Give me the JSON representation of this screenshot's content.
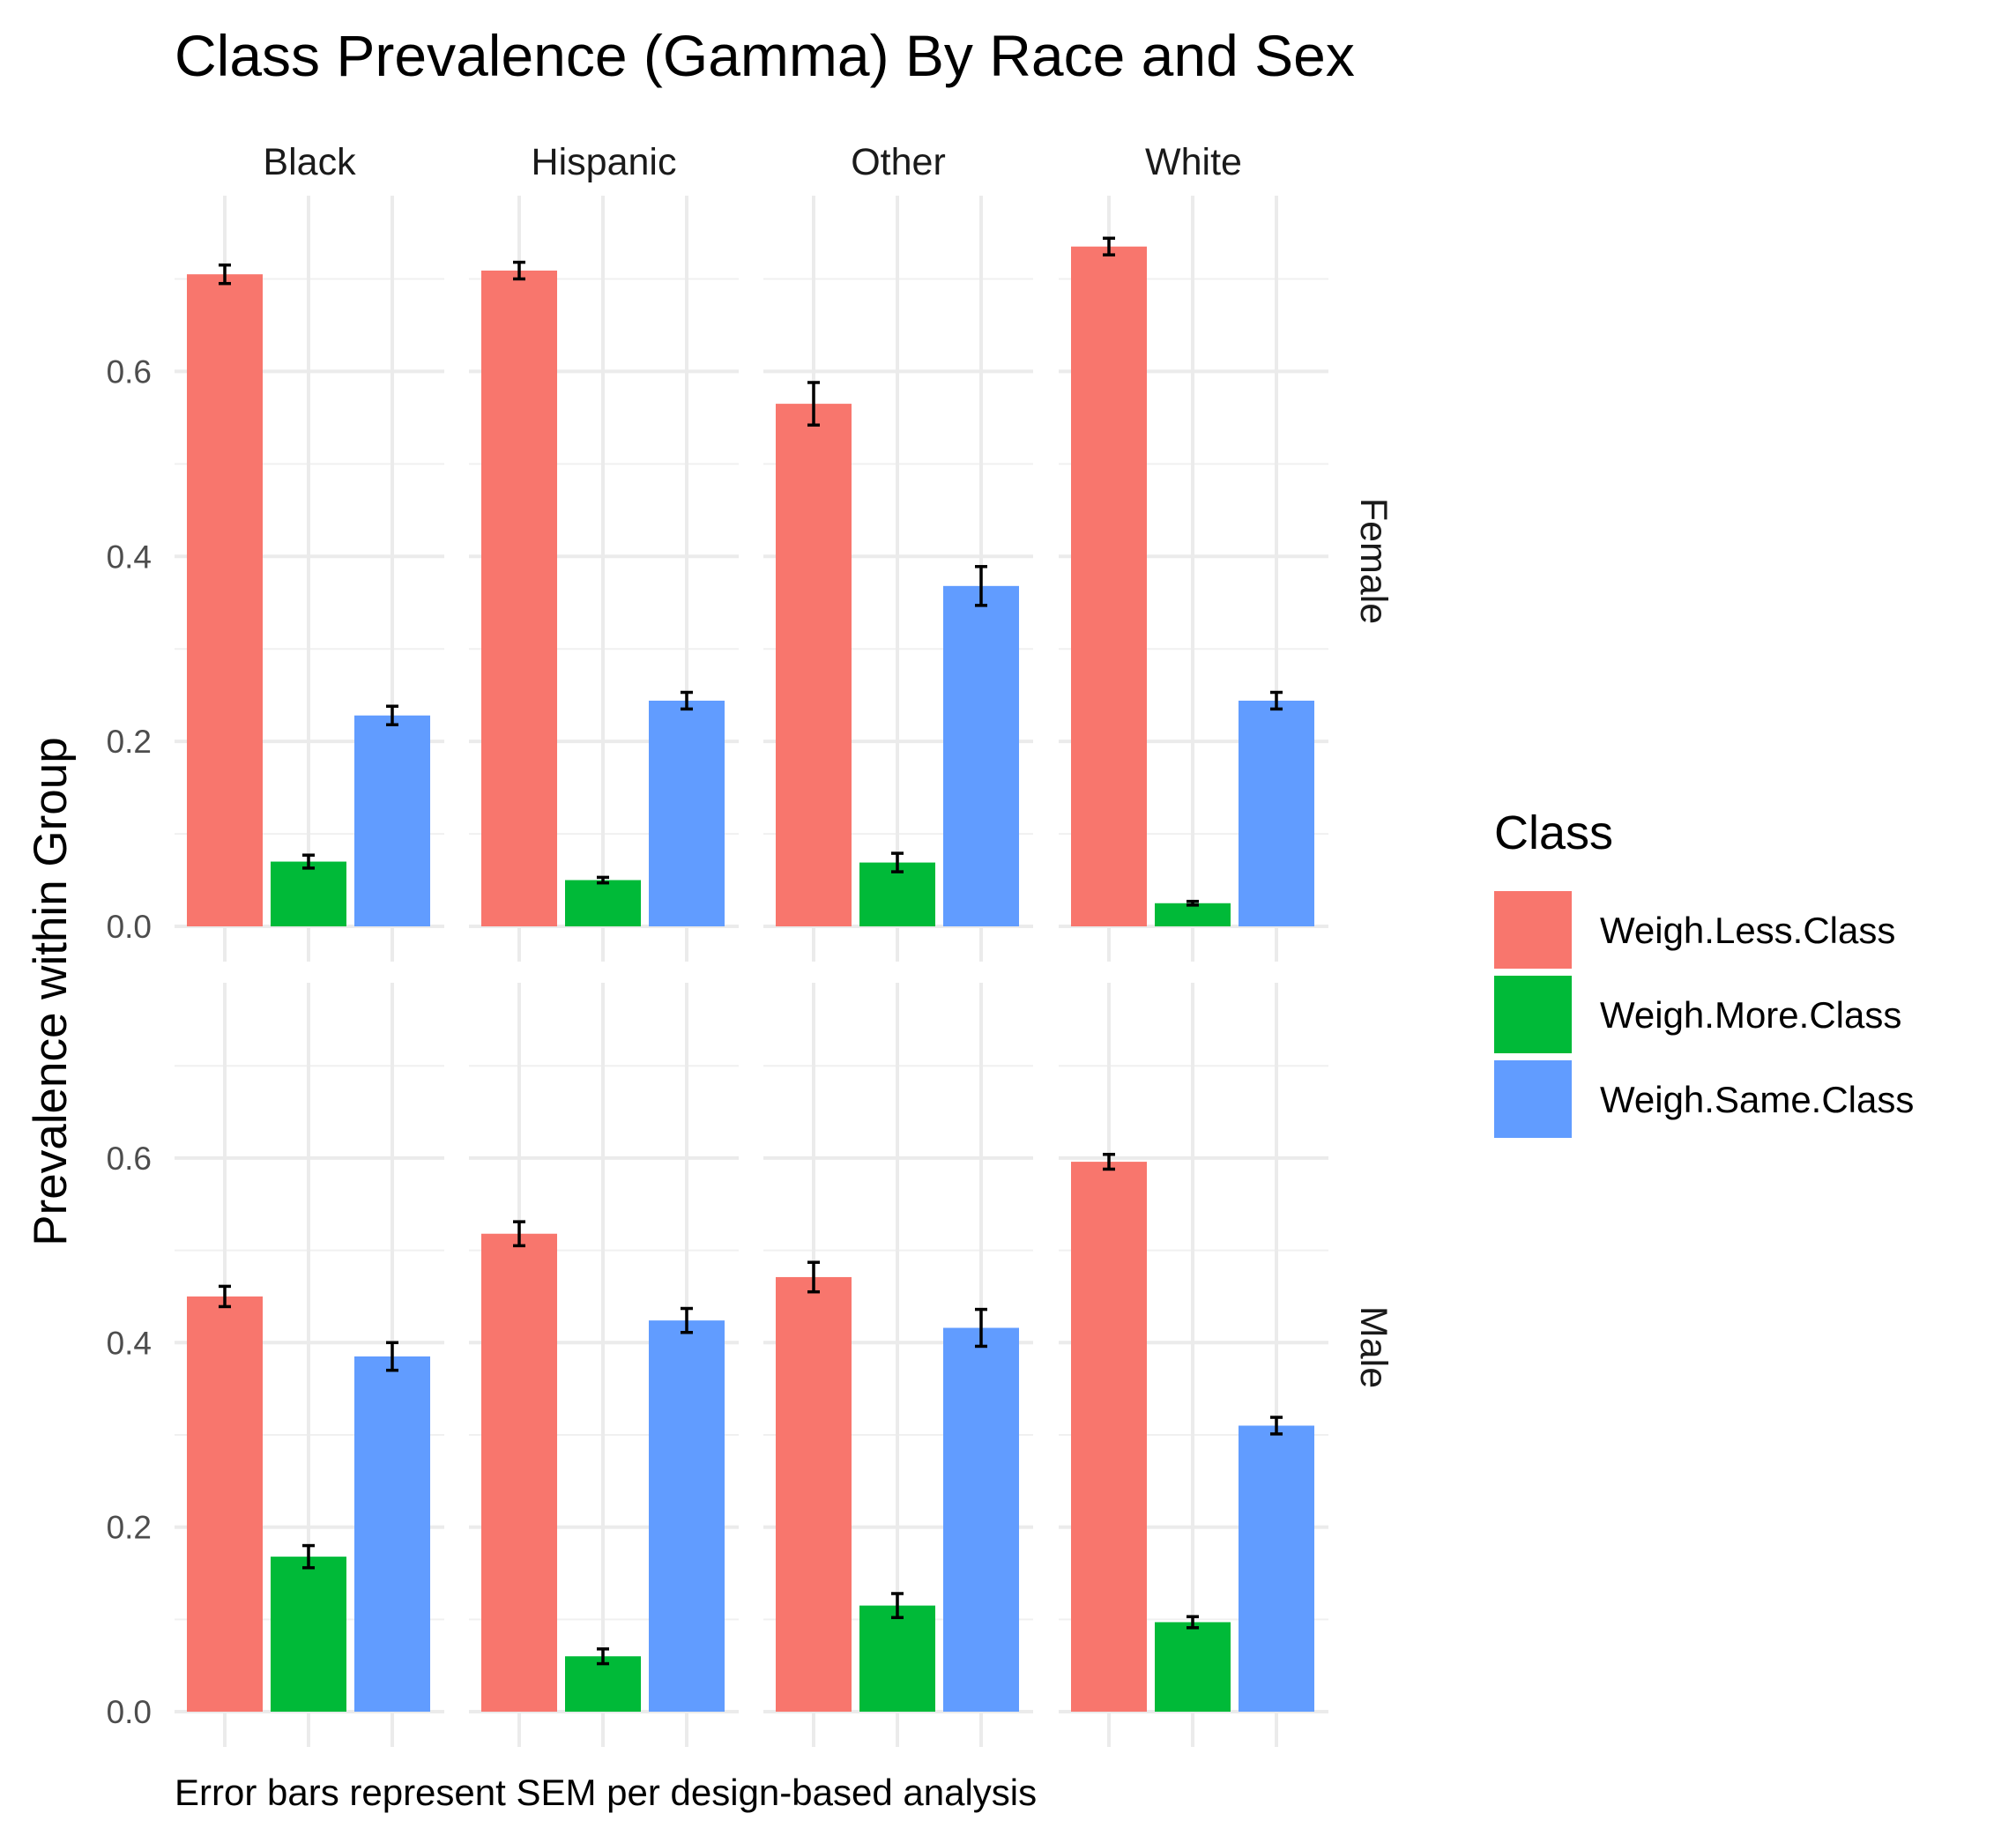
{
  "chart_data": {
    "type": "bar",
    "title": "Class Prevalence (Gamma) By Race and Sex",
    "caption": "Error bars represent SEM per design-based analysis",
    "ylabel": "Prevalence within Group",
    "xlabel": "",
    "ylim": [
      0,
      0.79
    ],
    "yticks": [
      0.0,
      0.2,
      0.4,
      0.6
    ],
    "ytick_labels": [
      "0.0",
      "0.2",
      "0.4",
      "0.6"
    ],
    "grid": true,
    "facet_columns": [
      "Black",
      "Hispanic",
      "Other",
      "White"
    ],
    "facet_rows": [
      "Female",
      "Male"
    ],
    "legend": {
      "title": "Class",
      "position": "right",
      "entries": [
        {
          "name": "Weigh.Less.Class",
          "color": "#F8766D"
        },
        {
          "name": "Weigh.More.Class",
          "color": "#00BA38"
        },
        {
          "name": "Weigh.Same.Class",
          "color": "#619CFF"
        }
      ]
    },
    "series": [
      {
        "name": "Weigh.Less.Class",
        "color": "#F8766D",
        "values": {
          "Female": [
            0.705,
            0.709,
            0.565,
            0.735
          ],
          "Male": [
            0.45,
            0.518,
            0.471,
            0.596
          ]
        },
        "sem": {
          "Female": [
            0.01,
            0.009,
            0.023,
            0.009
          ],
          "Male": [
            0.011,
            0.013,
            0.016,
            0.008
          ]
        }
      },
      {
        "name": "Weigh.More.Class",
        "color": "#00BA38",
        "values": {
          "Female": [
            0.07,
            0.05,
            0.069,
            0.025
          ],
          "Male": [
            0.168,
            0.06,
            0.115,
            0.097
          ]
        },
        "sem": {
          "Female": [
            0.007,
            0.003,
            0.01,
            0.002
          ],
          "Male": [
            0.012,
            0.008,
            0.013,
            0.006
          ]
        }
      },
      {
        "name": "Weigh.Same.Class",
        "color": "#619CFF",
        "values": {
          "Female": [
            0.228,
            0.244,
            0.368,
            0.244
          ],
          "Male": [
            0.385,
            0.424,
            0.416,
            0.31
          ]
        },
        "sem": {
          "Female": [
            0.01,
            0.009,
            0.021,
            0.009
          ],
          "Male": [
            0.015,
            0.013,
            0.02,
            0.009
          ]
        }
      }
    ]
  }
}
